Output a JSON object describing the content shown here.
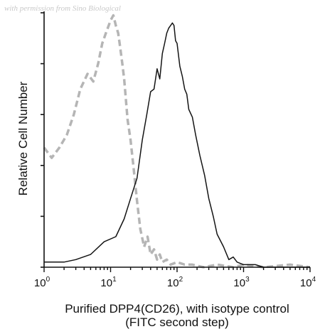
{
  "watermark": "with permission from Sino Biological",
  "chart_data": {
    "type": "line",
    "x_scale": "log",
    "xlim": [
      1,
      10000
    ],
    "ylim": [
      0,
      100
    ],
    "x_ticks": [
      {
        "base": "10",
        "exp": "0",
        "value": 1
      },
      {
        "base": "10",
        "exp": "1",
        "value": 10
      },
      {
        "base": "10",
        "exp": "2",
        "value": 100
      },
      {
        "base": "10",
        "exp": "3",
        "value": 1000
      },
      {
        "base": "10",
        "exp": "4",
        "value": 10000
      }
    ],
    "y_ticks": [
      0,
      20,
      40,
      60,
      80,
      100
    ],
    "y_tick_labels_shown": false,
    "xlabel": "Purified DPP4(CD26), with isotype control",
    "xlabel_line2": "(FITC second step)",
    "ylabel": "Relative Cell Number",
    "grid": false,
    "legend": "none",
    "series": [
      {
        "color": "#b5b5b5",
        "style": "dashed",
        "x": [
          1,
          1.3,
          1.7,
          2.2,
          2.8,
          3.5,
          4.5,
          5.5,
          6.5,
          7.5,
          8.5,
          10,
          11,
          12,
          13,
          14,
          15,
          16,
          17,
          18,
          20,
          22,
          25,
          28,
          32,
          36,
          40,
          45,
          50,
          55,
          60,
          70,
          80,
          100,
          130,
          170,
          250,
          400,
          700,
          1000,
          2000,
          5000,
          10000
        ],
        "y": [
          47,
          43,
          47,
          52,
          60,
          70,
          76,
          73,
          80,
          88,
          92,
          97,
          99,
          95,
          92,
          86,
          80,
          74,
          66,
          58,
          50,
          40,
          26,
          15,
          8,
          12,
          5,
          7,
          3,
          5,
          2,
          3,
          1,
          2,
          1,
          1,
          0,
          1,
          0,
          1,
          0,
          1,
          0
        ]
      },
      {
        "color": "#141414",
        "style": "solid",
        "x": [
          1,
          2,
          3,
          5,
          8,
          12,
          16,
          20,
          25,
          30,
          35,
          40,
          45,
          50,
          55,
          60,
          65,
          70,
          75,
          80,
          85,
          90,
          95,
          100,
          110,
          120,
          130,
          140,
          150,
          170,
          190,
          220,
          260,
          300,
          350,
          400,
          500,
          600,
          700,
          800,
          1000,
          1200,
          1500,
          2000,
          3000,
          5000,
          10000
        ],
        "y": [
          2,
          2,
          3,
          5,
          10,
          12,
          19,
          27,
          35,
          50,
          60,
          69,
          70,
          78,
          74,
          84,
          88,
          92,
          94,
          95,
          96,
          95,
          89,
          88,
          79,
          75,
          70,
          68,
          62,
          59,
          52,
          44,
          36,
          27,
          20,
          13,
          8,
          3,
          4,
          2,
          1,
          1,
          1,
          0,
          0,
          0,
          0
        ]
      }
    ]
  }
}
